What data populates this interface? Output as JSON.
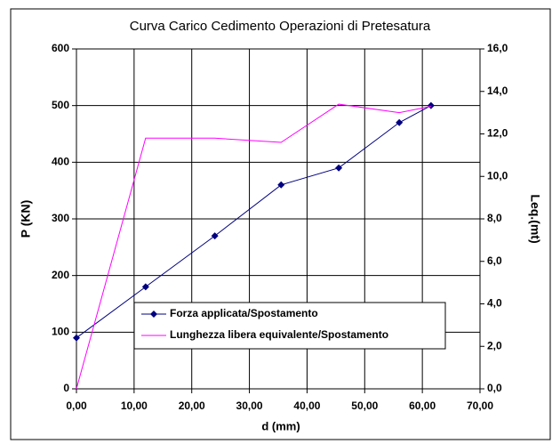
{
  "chart_data": {
    "type": "line",
    "title": "Curva Carico Cedimento Operazioni di Pretesatura",
    "xlabel": "d (mm)",
    "ylabel": "P (KN)",
    "y2label": "Leq.(mt)",
    "x": [
      0,
      12,
      24,
      35.5,
      45.5,
      56,
      61.5
    ],
    "series": [
      {
        "name": "Forza applicata/Spostamento",
        "color": "#000080",
        "values": [
          90,
          180,
          270,
          360,
          390,
          470,
          500
        ]
      },
      {
        "name": "Lunghezza libera equivalente/Spostamento",
        "color": "#ff00ff",
        "axis": "y2",
        "values": [
          0,
          11.8,
          11.8,
          11.6,
          13.4,
          13.0,
          13.3
        ]
      }
    ],
    "xlim": [
      0,
      70
    ],
    "xticks": [
      {
        "value": 0,
        "label": "0,00"
      },
      {
        "value": 10,
        "label": "10,00"
      },
      {
        "value": 20,
        "label": "20,00"
      },
      {
        "value": 30,
        "label": "30,00"
      },
      {
        "value": 40,
        "label": "40,00"
      },
      {
        "value": 50,
        "label": "50,00"
      },
      {
        "value": 60,
        "label": "60,00"
      },
      {
        "value": 70,
        "label": "70,00"
      }
    ],
    "ylim": [
      0,
      600
    ],
    "yticks": [
      0,
      100,
      200,
      300,
      400,
      500,
      600
    ],
    "y2lim": [
      0,
      16
    ],
    "y2ticks": [
      {
        "value": 0,
        "label": "0,0"
      },
      {
        "value": 2,
        "label": "2,0"
      },
      {
        "value": 4,
        "label": "4,0"
      },
      {
        "value": 6,
        "label": "6,0"
      },
      {
        "value": 8,
        "label": "8,0"
      },
      {
        "value": 10,
        "label": "10,0"
      },
      {
        "value": 12,
        "label": "12,0"
      },
      {
        "value": 14,
        "label": "14,0"
      },
      {
        "value": 16,
        "label": "16,0"
      }
    ],
    "grid": true
  }
}
